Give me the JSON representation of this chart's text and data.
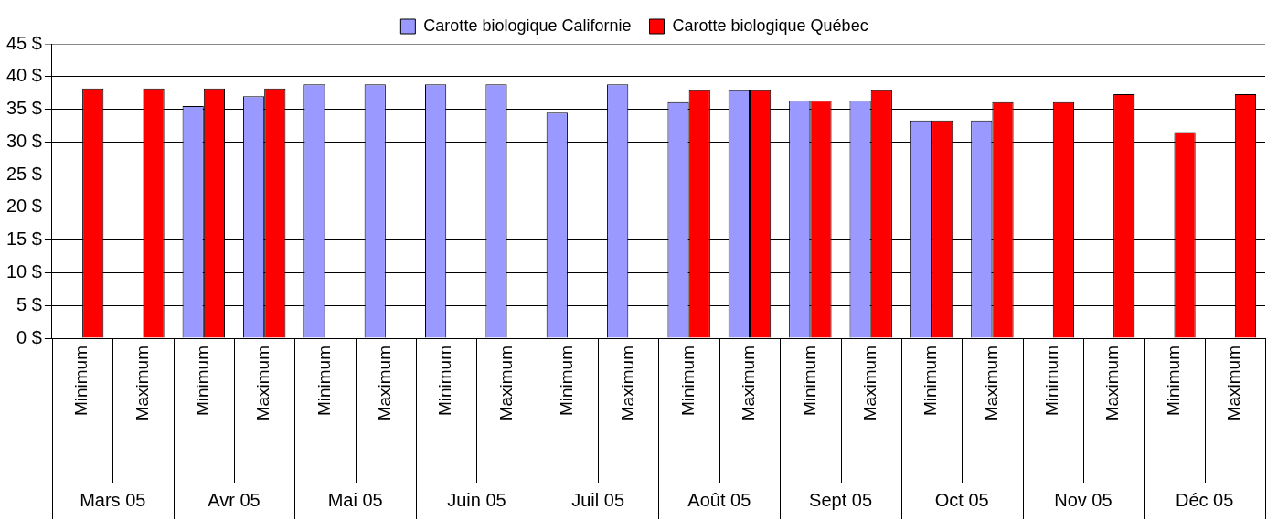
{
  "chart_data": {
    "type": "bar",
    "categories": [
      "Minimum",
      "Maximum",
      "Minimum",
      "Maximum",
      "Minimum",
      "Maximum",
      "Minimum",
      "Maximum",
      "Minimum",
      "Maximum",
      "Minimum",
      "Maximum",
      "Minimum",
      "Maximum",
      "Minimum",
      "Maximum",
      "Minimum",
      "Maximum",
      "Minimum",
      "Maximum"
    ],
    "annotations": [
      "Mars 05",
      "Avr 05",
      "Mai 05",
      "Juin 05",
      "Juil 05",
      "Août 05",
      "Sept 05",
      "Oct 05",
      "Nov 05",
      "Déc 05"
    ],
    "series": [
      {
        "name": "Carotte biologique Californie",
        "color": "#9999ff",
        "values": [
          null,
          null,
          35.5,
          37.0,
          38.8,
          38.8,
          38.8,
          38.8,
          34.5,
          38.8,
          36.1,
          37.9,
          36.3,
          36.3,
          33.3,
          33.3,
          null,
          null,
          null,
          null
        ]
      },
      {
        "name": "Carotte biologique Québec",
        "color": "#ff0000",
        "values": [
          38.2,
          38.2,
          38.2,
          38.2,
          null,
          null,
          null,
          null,
          null,
          null,
          37.9,
          37.9,
          36.3,
          37.9,
          33.3,
          36.1,
          36.1,
          37.3,
          31.5,
          37.3
        ]
      }
    ],
    "ylim": [
      0,
      45
    ],
    "yticks": [
      {
        "value": 0,
        "label": "0 $"
      },
      {
        "value": 5,
        "label": "5 $"
      },
      {
        "value": 10,
        "label": "10 $"
      },
      {
        "value": 15,
        "label": "15 $"
      },
      {
        "value": 20,
        "label": "20 $"
      },
      {
        "value": 25,
        "label": "25 $"
      },
      {
        "value": 30,
        "label": "30 $"
      },
      {
        "value": 35,
        "label": "35 $"
      },
      {
        "value": 40,
        "label": "40 $"
      },
      {
        "value": 45,
        "label": "45 $"
      }
    ],
    "grid": "y",
    "legend": "top"
  }
}
